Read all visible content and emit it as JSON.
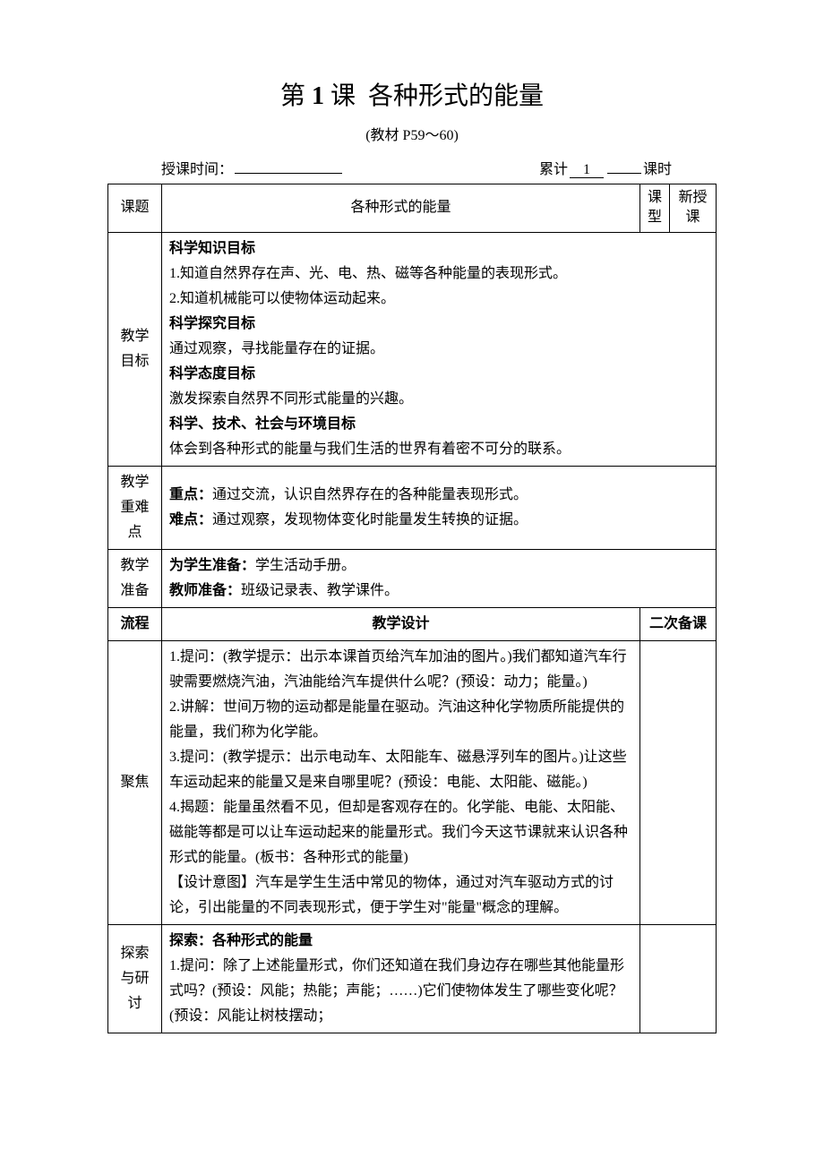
{
  "title_prefix": "第",
  "title_num": "1",
  "title_mid": "课",
  "title_suffix": "各种形式的能量",
  "subtitle": "(教材 P59～60)",
  "meta": {
    "teach_time_label": "授课时间：",
    "accum_label": "累计",
    "accum_value": "1",
    "period_label": "课时"
  },
  "header_row": {
    "keti_label": "课题",
    "keti_value": "各种形式的能量",
    "kexing_label": "课\n型",
    "kexing_value": "新授\n课"
  },
  "goals": {
    "label": "教学\n目标",
    "h1": "科学知识目标",
    "p1": "1.知道自然界存在声、光、电、热、磁等各种能量的表现形式。",
    "p2": "2.知道机械能可以使物体运动起来。",
    "h2": "科学探究目标",
    "p3": "通过观察，寻找能量存在的证据。",
    "h3": "科学态度目标",
    "p4": "激发探索自然界不同形式能量的兴趣。",
    "h4": "科学、技术、社会与环境目标",
    "p5": "体会到各种形式的能量与我们生活的世界有着密不可分的联系。"
  },
  "keypoint": {
    "label": "教学\n重难点",
    "zd_label": "重点：",
    "zd_text": "通过交流，认识自然界存在的各种能量表现形式。",
    "nd_label": "难点：",
    "nd_text": "通过观察，发现物体变化时能量发生转换的证据。"
  },
  "prep": {
    "label": "教学\n准备",
    "s_label": "为学生准备：",
    "s_text": "学生活动手册。",
    "t_label": "教师准备：",
    "t_text": "班级记录表、教学课件。"
  },
  "flow_header": {
    "c1": "流程",
    "c2": "教学设计",
    "c3": "二次备课"
  },
  "focus": {
    "label": "聚焦",
    "p1": "1.提问：(教学提示：出示本课首页给汽车加油的图片。)我们都知道汽车行驶需要燃烧汽油，汽油能给汽车提供什么呢？(预设：动力；能量。)",
    "p2": "2.讲解：世间万物的运动都是能量在驱动。汽油这种化学物质所能提供的能量，我们称为化学能。",
    "p3": "3.提问：(教学提示：出示电动车、太阳能车、磁悬浮列车的图片。)让这些车运动起来的能量又是来自哪里呢？(预设：电能、太阳能、磁能。)",
    "p4": "4.揭题：能量虽然看不见，但却是客观存在的。化学能、电能、太阳能、磁能等都是可以让车运动起来的能量形式。我们今天这节课就来认识各种形式的能量。(板书：各种形式的能量)",
    "p5": "【设计意图】汽车是学生生活中常见的物体，通过对汽车驱动方式的讨论，引出能量的不同表现形式，便于学生对\"能量\"概念的理解。"
  },
  "explore": {
    "label": "探索\n与研讨",
    "h": "探索：各种形式的能量",
    "p1": "1.提问：除了上述能量形式，你们还知道在我们身边存在哪些其他能量形式吗？(预设：风能；热能；声能；……)它们使物体发生了哪些变化呢？(预设：风能让树枝摆动；"
  }
}
